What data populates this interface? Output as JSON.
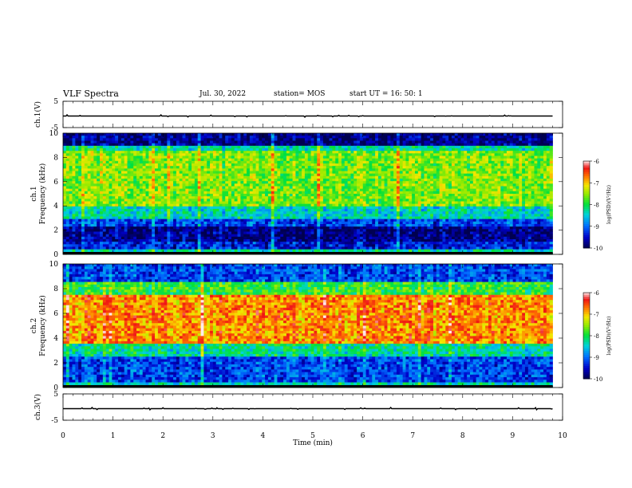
{
  "header": {
    "title": "VLF Spectra",
    "date": "Jul. 30, 2022",
    "station": "station= MOS",
    "start_ut": "start UT =   16: 50: 1"
  },
  "chart_data": [
    {
      "panel": "ch1-waveform",
      "type": "line",
      "ylabel": "ch.1(V)",
      "ytick_labels": [
        "5",
        "-5"
      ],
      "ylim": [
        -5,
        5
      ],
      "xlim": [
        0,
        10
      ],
      "values_summary": "flat trace near 0 V with tiny spikes"
    },
    {
      "panel": "ch1-spectrogram",
      "type": "heatmap",
      "ylabel": "ch.1\nFrequency (kHz)",
      "ytick_labels": [
        "0",
        "2",
        "4",
        "6",
        "8",
        "10"
      ],
      "ylim": [
        0,
        10
      ],
      "xlim": [
        0,
        10
      ],
      "colorbar": {
        "label": "log(PSD)(V²/Hz)",
        "ticks": [
          "-6",
          "-7",
          "-8",
          "-9",
          "-10"
        ],
        "range": [
          -10,
          -6
        ]
      },
      "bands": [
        {
          "f": [
            0,
            0.4
          ],
          "psd": -8.3
        },
        {
          "f": [
            0.4,
            1.0
          ],
          "psd": -9.4
        },
        {
          "f": [
            1.0,
            2.2
          ],
          "psd": -9.8
        },
        {
          "f": [
            2.2,
            3.0
          ],
          "psd": -9.2
        },
        {
          "f": [
            3.0,
            4.0
          ],
          "psd": -8.4
        },
        {
          "f": [
            4.0,
            8.5
          ],
          "psd": -7.6
        },
        {
          "f": [
            8.5,
            9.0
          ],
          "psd": -8.3
        },
        {
          "f": [
            9.0,
            10.0
          ],
          "psd": -9.8
        }
      ]
    },
    {
      "panel": "ch2-spectrogram",
      "type": "heatmap",
      "ylabel": "ch.2\nFrequency (kHz)",
      "ytick_labels": [
        "0",
        "2",
        "4",
        "6",
        "8",
        "10"
      ],
      "ylim": [
        0,
        10
      ],
      "xlim": [
        0,
        10
      ],
      "colorbar": {
        "label": "log(PSD)(V²/Hz)",
        "ticks": [
          "-6",
          "-7",
          "-8",
          "-9",
          "-10"
        ],
        "range": [
          -10,
          -6
        ]
      },
      "bands": [
        {
          "f": [
            0,
            0.4
          ],
          "psd": -8.4
        },
        {
          "f": [
            0.4,
            2.5
          ],
          "psd": -9.2
        },
        {
          "f": [
            2.5,
            3.5
          ],
          "psd": -8.3
        },
        {
          "f": [
            3.5,
            7.5
          ],
          "psd": -6.8
        },
        {
          "f": [
            7.5,
            8.5
          ],
          "psd": -7.9
        },
        {
          "f": [
            8.5,
            10.0
          ],
          "psd": -9.2
        }
      ]
    },
    {
      "panel": "ch3-waveform",
      "type": "line",
      "ylabel": "ch.3(V)",
      "ytick_labels": [
        "5",
        "-5"
      ],
      "ylim": [
        -5,
        5
      ],
      "xlim": [
        0,
        10
      ],
      "xlabel": "Time (min)",
      "xtick_labels": [
        "0",
        "1",
        "2",
        "3",
        "4",
        "5",
        "6",
        "7",
        "8",
        "9",
        "10"
      ],
      "values_summary": "flat trace near 0 V with tiny spikes"
    }
  ]
}
